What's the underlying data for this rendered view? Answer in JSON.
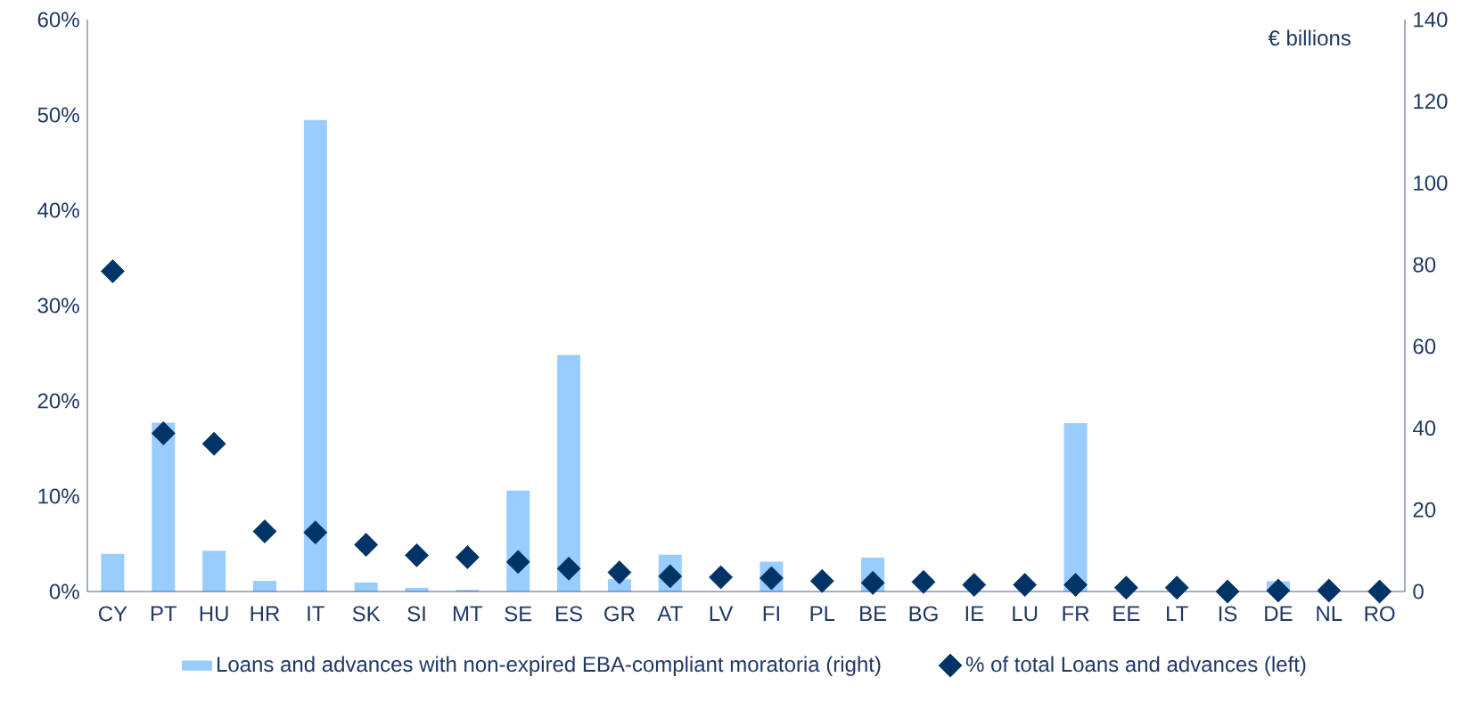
{
  "chart_data": {
    "type": "bar",
    "categories": [
      "CY",
      "PT",
      "HU",
      "HR",
      "IT",
      "SK",
      "SI",
      "MT",
      "SE",
      "ES",
      "GR",
      "AT",
      "LV",
      "FI",
      "PL",
      "BE",
      "BG",
      "IE",
      "LU",
      "FR",
      "EE",
      "LT",
      "IS",
      "DE",
      "NL",
      "RO"
    ],
    "series": [
      {
        "name": "Loans and advances with non-expired EBA-compliant moratoria (right)",
        "axis": "y2",
        "color": "#99ccff",
        "values": [
          9.2,
          41.3,
          10.0,
          2.6,
          115.4,
          2.2,
          0.9,
          0.4,
          24.7,
          57.9,
          3.0,
          9.0,
          null,
          7.3,
          null,
          8.3,
          null,
          null,
          null,
          41.2,
          null,
          null,
          null,
          2.5,
          null,
          null
        ]
      },
      {
        "name": "% of total Loans and advances (left)",
        "type": "scatter",
        "color": "#003366",
        "values": [
          33.6,
          16.6,
          15.5,
          6.3,
          6.2,
          4.9,
          3.8,
          3.6,
          3.1,
          2.4,
          2.0,
          1.6,
          1.5,
          1.4,
          1.1,
          0.9,
          1.0,
          0.7,
          0.7,
          0.7,
          0.4,
          0.4,
          0.0,
          0.1,
          0.1,
          0.0
        ]
      }
    ],
    "ylim": [
      0,
      60
    ],
    "yticks": [
      {
        "value": 0,
        "label": "0%"
      },
      {
        "value": 10,
        "label": "10%"
      },
      {
        "value": 20,
        "label": "20%"
      },
      {
        "value": 30,
        "label": "30%"
      },
      {
        "value": 40,
        "label": "40%"
      },
      {
        "value": 50,
        "label": "50%"
      },
      {
        "value": 60,
        "label": "60%"
      }
    ],
    "y2lim": [
      0,
      140
    ],
    "y2ticks": [
      0,
      20,
      40,
      60,
      80,
      100,
      120,
      140
    ],
    "y2label": "€ billions",
    "marker": "diamond",
    "legend": "bottom"
  }
}
